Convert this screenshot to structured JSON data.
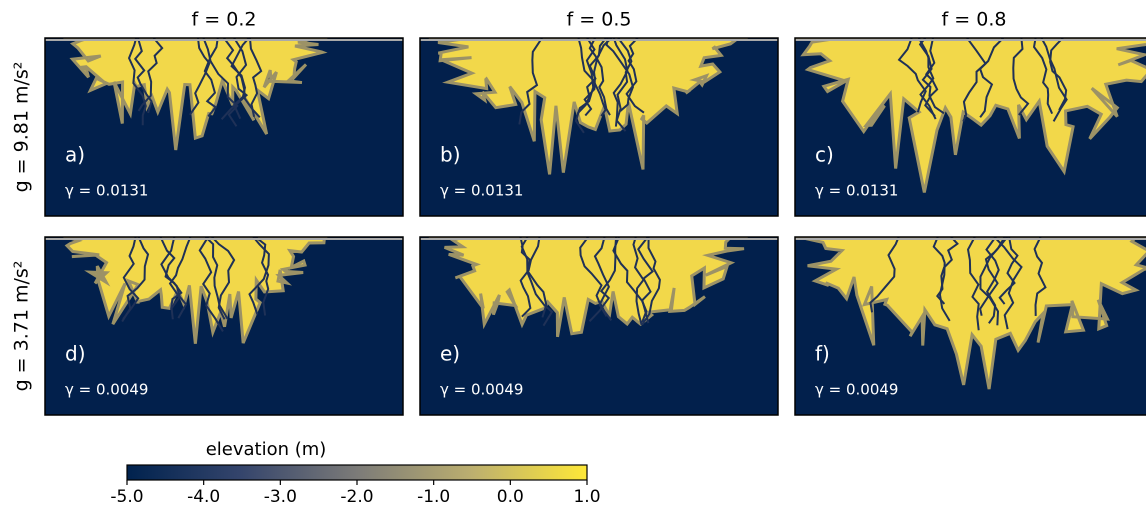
{
  "columns": [
    "f = 0.2",
    "f = 0.5",
    "f = 0.8"
  ],
  "rows": [
    "g = 9.81 m/s²",
    "g = 3.71 m/s²"
  ],
  "panels": [
    [
      {
        "label": "a)",
        "gamma": "γ = 0.0131"
      },
      {
        "label": "b)",
        "gamma": "γ = 0.0131"
      },
      {
        "label": "c)",
        "gamma": "γ = 0.0131"
      }
    ],
    [
      {
        "label": "d)",
        "gamma": "γ = 0.0049"
      },
      {
        "label": "e)",
        "gamma": "γ = 0.0049"
      },
      {
        "label": "f)",
        "gamma": "γ = 0.0049"
      }
    ]
  ],
  "colorbar": {
    "label": "elevation (m)",
    "lim": [
      -5,
      1
    ],
    "ticks": [
      {
        "value": -5,
        "label": "-5.0"
      },
      {
        "value": -4,
        "label": "-4.0"
      },
      {
        "value": -3,
        "label": "-3.0"
      },
      {
        "value": -2,
        "label": "-2.0"
      },
      {
        "value": -1,
        "label": "-1.0"
      },
      {
        "value": 0,
        "label": "0.0"
      },
      {
        "value": 1,
        "label": "1.0"
      }
    ]
  }
}
